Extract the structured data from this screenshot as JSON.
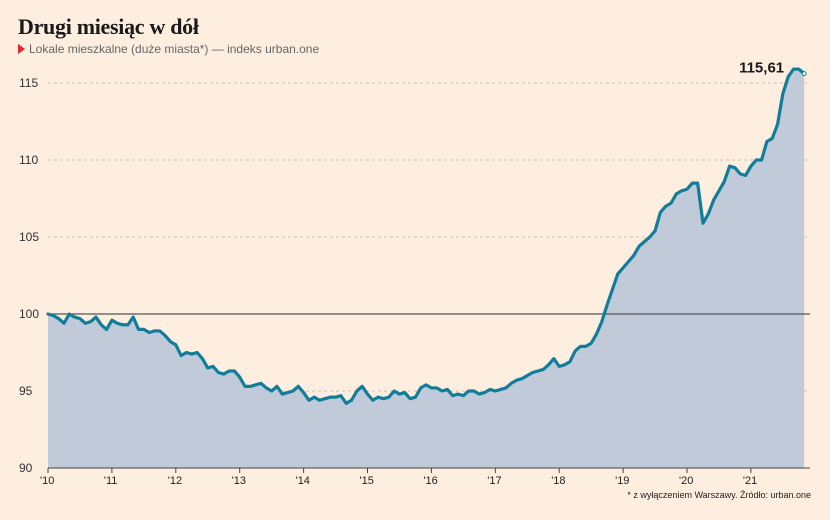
{
  "header": {
    "title": "Drugi miesiąc w dół",
    "subtitle": "Lokale mieszkalne (duże miasta*) — indeks urban.one"
  },
  "footnote": "* z wyłączeniem Warszawy. Źródło: urban.one",
  "colors": {
    "line": "#127d9a",
    "area": "#c0cad8",
    "baseline": "#555555",
    "grid": "#b9b2aa",
    "accent": "#e8242a"
  },
  "chart_data": {
    "type": "area",
    "title": "Drugi miesiąc w dół",
    "subtitle": "Lokale mieszkalne (duże miasta*) — indeks urban.one",
    "x_start": "2010-01",
    "frequency": "monthly",
    "ylim": [
      90,
      116
    ],
    "yticks": [
      90,
      95,
      100,
      105,
      110,
      115
    ],
    "xtick_labels": [
      "'10",
      "'11",
      "'12",
      "'13",
      "'14",
      "'15",
      "'16",
      "'17",
      "'18",
      "'19",
      "'20",
      "'21"
    ],
    "baseline_value": 100,
    "grid": true,
    "end_label": "115,61",
    "series": [
      {
        "values": [
          100.0,
          99.9,
          99.7,
          99.4,
          100.0,
          99.8,
          99.7,
          99.4,
          99.5,
          99.8,
          99.3,
          99.0,
          99.6,
          99.4,
          99.3,
          99.3,
          99.8,
          99.0,
          99.0,
          98.8,
          98.9,
          98.9,
          98.6,
          98.2,
          98.0,
          97.3,
          97.5,
          97.4,
          97.5,
          97.1,
          96.5,
          96.6,
          96.2,
          96.1,
          96.3,
          96.3,
          95.9,
          95.3,
          95.3,
          95.4,
          95.5,
          95.2,
          95.0,
          95.3,
          94.8,
          94.9,
          95.0,
          95.3,
          94.9,
          94.4,
          94.6,
          94.4,
          94.5,
          94.6,
          94.6,
          94.7,
          94.2,
          94.4,
          95.0,
          95.3,
          94.8,
          94.4,
          94.6,
          94.5,
          94.6,
          95.0,
          94.8,
          94.9,
          94.5,
          94.6,
          95.2,
          95.4,
          95.2,
          95.2,
          95.0,
          95.1,
          94.7,
          94.8,
          94.7,
          95.0,
          95.0,
          94.8,
          94.9,
          95.1,
          95.0,
          95.1,
          95.2,
          95.5,
          95.7,
          95.8,
          96.0,
          96.2,
          96.3,
          96.4,
          96.7,
          97.1,
          96.6,
          96.7,
          96.9,
          97.6,
          97.9,
          97.9,
          98.1,
          98.7,
          99.5,
          100.6,
          101.6,
          102.6,
          103.0,
          103.4,
          103.8,
          104.4,
          104.7,
          105.0,
          105.4,
          106.6,
          107.0,
          107.2,
          107.8,
          108.0,
          108.1,
          108.5,
          108.5,
          105.9,
          106.5,
          107.4,
          108.0,
          108.6,
          109.6,
          109.5,
          109.1,
          109.0,
          109.6,
          110.0,
          110.0,
          111.2,
          111.4,
          112.3,
          114.3,
          115.4,
          115.9,
          115.9,
          115.61
        ]
      }
    ]
  }
}
